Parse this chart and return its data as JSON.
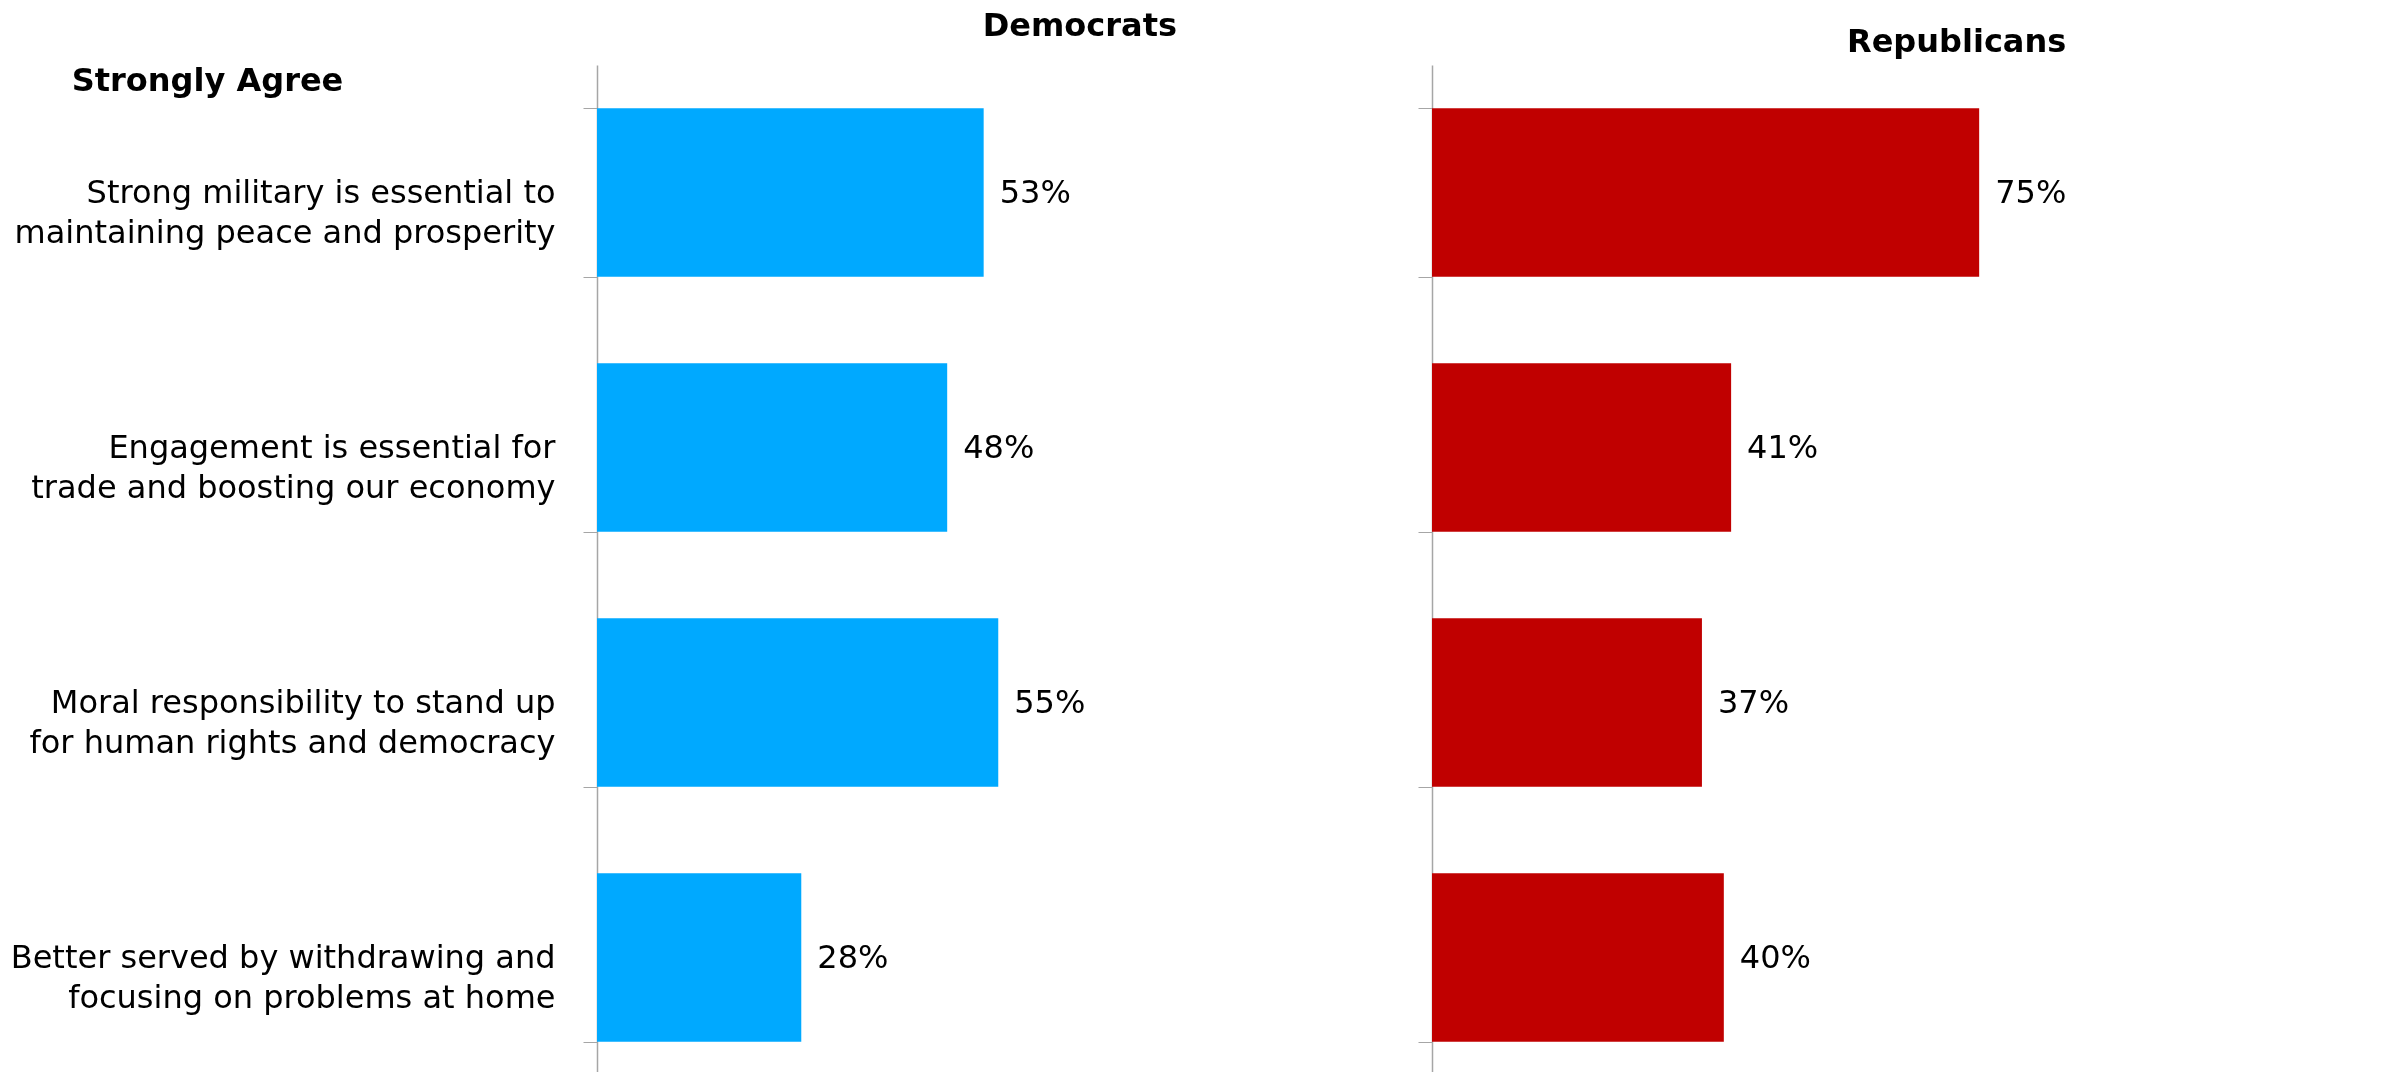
{
  "chart_data": [
    {
      "type": "bar",
      "orientation": "horizontal",
      "title": "Democrats",
      "ylabel": "Strongly Agree",
      "categories": [
        "Strong military is essential to maintaining peace and prosperity",
        "Engagement is essential for trade and boosting our economy",
        "Moral responsibility to stand up for human rights and democracy",
        "Better served by withdrawing and focusing on problems at home"
      ],
      "values": [
        53,
        48,
        55,
        28
      ],
      "value_labels": [
        "53%",
        "48%",
        "55%",
        "28%"
      ],
      "color": "#00a9ff"
    },
    {
      "type": "bar",
      "orientation": "horizontal",
      "title": "Republicans",
      "categories": [
        null,
        null,
        null,
        null
      ],
      "values": [
        75,
        41,
        37,
        40
      ],
      "value_labels": [
        "75%",
        "41%",
        "37%",
        "40%"
      ],
      "color": "#c00000",
      "tick_labels": false
    }
  ]
}
